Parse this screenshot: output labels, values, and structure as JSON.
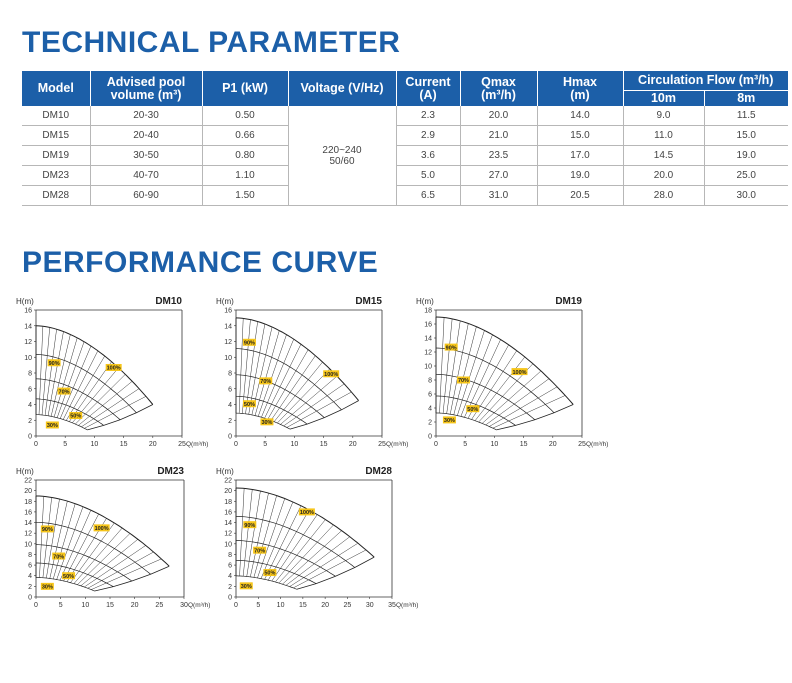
{
  "headings": {
    "technical": "TECHNICAL PARAMETER",
    "performance": "PERFORMANCE CURVE"
  },
  "table": {
    "headers": {
      "model": "Model",
      "volume_line1": "Advised pool",
      "volume_line2": "volume (m³)",
      "p1": "P1 (kW)",
      "voltage": "Voltage (V/Hz)",
      "current_line1": "Current",
      "current_line2": "(A)",
      "qmax_line1": "Qmax",
      "qmax_line2": "(m³/h)",
      "hmax_line1": "Hmax",
      "hmax_line2": "(m)",
      "flow": "Circulation Flow (m³/h)",
      "flow_10m": "10m",
      "flow_8m": "8m"
    },
    "voltage_line1": "220~240",
    "voltage_line2": "50/60",
    "rows": [
      {
        "model": "DM10",
        "volume": "20-30",
        "p1": "0.50",
        "current": "2.3",
        "qmax": "20.0",
        "hmax": "14.0",
        "flow10": "9.0",
        "flow8": "11.5"
      },
      {
        "model": "DM15",
        "volume": "20-40",
        "p1": "0.66",
        "current": "2.9",
        "qmax": "21.0",
        "hmax": "15.0",
        "flow10": "11.0",
        "flow8": "15.0"
      },
      {
        "model": "DM19",
        "volume": "30-50",
        "p1": "0.80",
        "current": "3.6",
        "qmax": "23.5",
        "hmax": "17.0",
        "flow10": "14.5",
        "flow8": "19.0"
      },
      {
        "model": "DM23",
        "volume": "40-70",
        "p1": "1.10",
        "current": "5.0",
        "qmax": "27.0",
        "hmax": "19.0",
        "flow10": "20.0",
        "flow8": "25.0"
      },
      {
        "model": "DM28",
        "volume": "60-90",
        "p1": "1.50",
        "current": "6.5",
        "qmax": "31.0",
        "hmax": "20.5",
        "flow10": "28.0",
        "flow8": "30.0"
      }
    ]
  },
  "chart_data": [
    {
      "type": "line",
      "title": "DM10",
      "ylabel": "H(m)",
      "xlabel": "Q(m³/h)",
      "xlim": [
        0,
        25
      ],
      "ylim": [
        0,
        16
      ],
      "xticks": [
        0,
        5,
        10,
        15,
        20,
        25
      ],
      "yticks": [
        0,
        2,
        4,
        6,
        8,
        10,
        12,
        14,
        16
      ],
      "shutoff_head": 14.0,
      "qmax": 20.0,
      "end_head": 4.0,
      "efficiency_labels": [
        {
          "label": "100%",
          "q": 13.3,
          "h": 8.7
        },
        {
          "label": "90%",
          "q": 3.1,
          "h": 9.3
        },
        {
          "label": "70%",
          "q": 4.8,
          "h": 5.7
        },
        {
          "label": "50%",
          "q": 6.8,
          "h": 2.6
        },
        {
          "label": "30%",
          "q": 2.8,
          "h": 1.4
        }
      ]
    },
    {
      "type": "line",
      "title": "DM15",
      "ylabel": "H(m)",
      "xlabel": "Q(m³/h)",
      "xlim": [
        0,
        25
      ],
      "ylim": [
        0,
        16
      ],
      "xticks": [
        0,
        5,
        10,
        15,
        20,
        25
      ],
      "yticks": [
        0,
        2,
        4,
        6,
        8,
        10,
        12,
        14,
        16
      ],
      "shutoff_head": 15.0,
      "qmax": 21.0,
      "end_head": 4.5,
      "efficiency_labels": [
        {
          "label": "100%",
          "q": 16.3,
          "h": 7.9
        },
        {
          "label": "90%",
          "q": 2.3,
          "h": 11.9
        },
        {
          "label": "70%",
          "q": 5.1,
          "h": 7.0
        },
        {
          "label": "50%",
          "q": 2.3,
          "h": 4.1
        },
        {
          "label": "30%",
          "q": 5.3,
          "h": 1.8
        }
      ]
    },
    {
      "type": "line",
      "title": "DM19",
      "ylabel": "H(m)",
      "xlabel": "Q(m³/h)",
      "xlim": [
        0,
        25
      ],
      "ylim": [
        0,
        18
      ],
      "xticks": [
        0,
        5,
        10,
        15,
        20,
        25
      ],
      "yticks": [
        0,
        2,
        4,
        6,
        8,
        10,
        12,
        14,
        16,
        18
      ],
      "shutoff_head": 17.0,
      "qmax": 23.5,
      "end_head": 4.5,
      "efficiency_labels": [
        {
          "label": "100%",
          "q": 14.3,
          "h": 9.2
        },
        {
          "label": "90%",
          "q": 2.6,
          "h": 12.7
        },
        {
          "label": "70%",
          "q": 4.7,
          "h": 8.0
        },
        {
          "label": "50%",
          "q": 6.3,
          "h": 3.9
        },
        {
          "label": "30%",
          "q": 2.3,
          "h": 2.3
        }
      ]
    },
    {
      "type": "line",
      "title": "DM23",
      "ylabel": "H(m)",
      "xlabel": "Q(m³/h)",
      "xlim": [
        0,
        30
      ],
      "ylim": [
        0,
        22
      ],
      "xticks": [
        0,
        5,
        10,
        15,
        20,
        25,
        30
      ],
      "yticks": [
        0,
        2,
        4,
        6,
        8,
        10,
        12,
        14,
        16,
        18,
        20,
        22
      ],
      "shutoff_head": 19.0,
      "qmax": 27.0,
      "end_head": 5.8,
      "efficiency_labels": [
        {
          "label": "100%",
          "q": 13.3,
          "h": 13.0
        },
        {
          "label": "90%",
          "q": 2.3,
          "h": 12.8
        },
        {
          "label": "70%",
          "q": 4.6,
          "h": 7.7
        },
        {
          "label": "50%",
          "q": 6.6,
          "h": 4.0
        },
        {
          "label": "30%",
          "q": 2.3,
          "h": 2.0
        }
      ]
    },
    {
      "type": "line",
      "title": "DM28",
      "ylabel": "H(m)",
      "xlabel": "Q(m³/h)",
      "xlim": [
        0,
        35
      ],
      "ylim": [
        0,
        22
      ],
      "xticks": [
        0,
        5,
        10,
        15,
        20,
        25,
        30,
        35
      ],
      "yticks": [
        0,
        2,
        4,
        6,
        8,
        10,
        12,
        14,
        16,
        18,
        20,
        22
      ],
      "shutoff_head": 20.5,
      "qmax": 31.0,
      "end_head": 7.5,
      "efficiency_labels": [
        {
          "label": "100%",
          "q": 15.9,
          "h": 16.0
        },
        {
          "label": "90%",
          "q": 3.1,
          "h": 13.6
        },
        {
          "label": "70%",
          "q": 5.3,
          "h": 8.8
        },
        {
          "label": "50%",
          "q": 7.6,
          "h": 4.6
        },
        {
          "label": "30%",
          "q": 2.3,
          "h": 2.1
        }
      ]
    }
  ]
}
